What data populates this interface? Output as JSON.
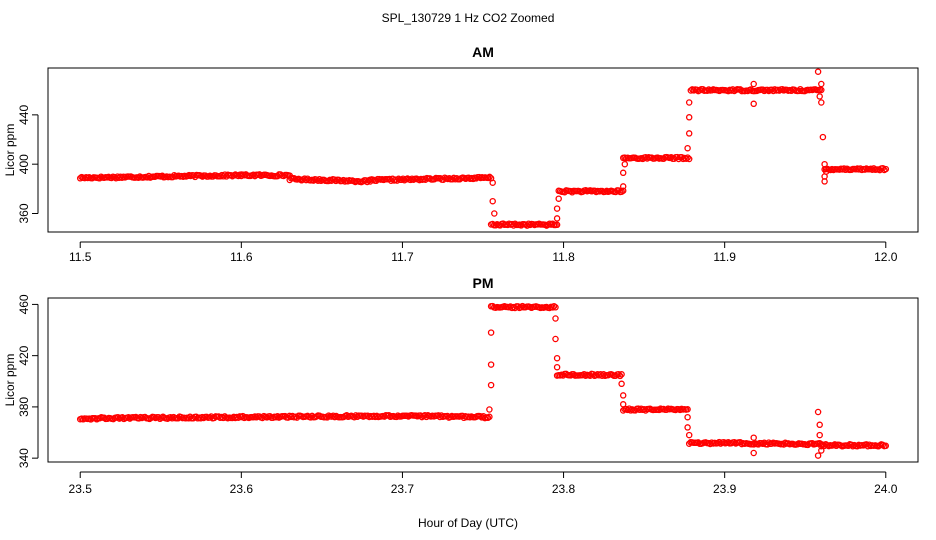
{
  "figure": {
    "title": "SPL_130729  1 Hz CO2 Zoomed",
    "xlabel": "Hour of Day (UTC)"
  },
  "chart_data": [
    {
      "type": "scatter",
      "title": "AM",
      "xlabel": "",
      "ylabel": "Licor ppm",
      "xlim": [
        11.48,
        12.02
      ],
      "ylim": [
        345,
        478
      ],
      "xticks": [
        11.5,
        11.6,
        11.7,
        11.8,
        11.9,
        12.0
      ],
      "xtick_labels": [
        "11.5",
        "11.6",
        "11.7",
        "11.8",
        "11.9",
        "12.0"
      ],
      "yticks": [
        360,
        400,
        440
      ],
      "ytick_labels": [
        "360",
        "400",
        "440"
      ],
      "grid": false,
      "marker_color": "#ff0000",
      "series": [
        {
          "segments": [
            {
              "x0": 11.5,
              "x1": 11.55,
              "y0": 389,
              "y1": 390
            },
            {
              "x0": 11.55,
              "x1": 11.6,
              "y0": 390,
              "y1": 391
            },
            {
              "x0": 11.6,
              "x1": 11.63,
              "y0": 391,
              "y1": 391
            },
            {
              "x0": 11.63,
              "x1": 11.68,
              "y0": 388,
              "y1": 386
            },
            {
              "x0": 11.68,
              "x1": 11.755,
              "y0": 387,
              "y1": 389
            },
            {
              "x0": 11.755,
              "x1": 11.796,
              "y0": 351,
              "y1": 351
            },
            {
              "x0": 11.797,
              "x1": 11.837,
              "y0": 378,
              "y1": 378
            },
            {
              "x0": 11.837,
              "x1": 11.878,
              "y0": 405,
              "y1": 405
            },
            {
              "x0": 11.879,
              "x1": 11.96,
              "y0": 460,
              "y1": 460
            },
            {
              "x0": 11.962,
              "x1": 12.0,
              "y0": 396,
              "y1": 396
            }
          ],
          "points": [
            {
              "x": 11.756,
              "y": 385
            },
            {
              "x": 11.756,
              "y": 370
            },
            {
              "x": 11.757,
              "y": 360
            },
            {
              "x": 11.796,
              "y": 356
            },
            {
              "x": 11.796,
              "y": 364
            },
            {
              "x": 11.797,
              "y": 372
            },
            {
              "x": 11.837,
              "y": 382
            },
            {
              "x": 11.837,
              "y": 393
            },
            {
              "x": 11.838,
              "y": 400
            },
            {
              "x": 11.877,
              "y": 413
            },
            {
              "x": 11.878,
              "y": 425
            },
            {
              "x": 11.878,
              "y": 438
            },
            {
              "x": 11.878,
              "y": 450
            },
            {
              "x": 11.918,
              "y": 449
            },
            {
              "x": 11.918,
              "y": 465
            },
            {
              "x": 11.958,
              "y": 475
            },
            {
              "x": 11.959,
              "y": 455
            },
            {
              "x": 11.96,
              "y": 465
            },
            {
              "x": 11.96,
              "y": 450
            },
            {
              "x": 11.961,
              "y": 422
            },
            {
              "x": 11.962,
              "y": 400
            },
            {
              "x": 11.962,
              "y": 386
            },
            {
              "x": 11.962,
              "y": 390
            },
            {
              "x": 11.963,
              "y": 394
            }
          ]
        }
      ]
    },
    {
      "type": "scatter",
      "title": "PM",
      "xlabel": "",
      "ylabel": "Licor ppm",
      "xlim": [
        23.48,
        24.02
      ],
      "ylim": [
        337,
        465
      ],
      "xticks": [
        23.5,
        23.6,
        23.7,
        23.8,
        23.9,
        24.0
      ],
      "xtick_labels": [
        "23.5",
        "23.6",
        "23.7",
        "23.8",
        "23.9",
        "24.0"
      ],
      "yticks": [
        340,
        380,
        420,
        460
      ],
      "ytick_labels": [
        "340",
        "380",
        "420",
        "460"
      ],
      "grid": false,
      "marker_color": "#ff0000",
      "series": [
        {
          "segments": [
            {
              "x0": 23.5,
              "x1": 23.6,
              "y0": 371,
              "y1": 372
            },
            {
              "x0": 23.6,
              "x1": 23.7,
              "y0": 372,
              "y1": 373
            },
            {
              "x0": 23.7,
              "x1": 23.754,
              "y0": 373,
              "y1": 372
            },
            {
              "x0": 23.755,
              "x1": 23.795,
              "y0": 458,
              "y1": 458
            },
            {
              "x0": 23.796,
              "x1": 23.836,
              "y0": 405,
              "y1": 405
            },
            {
              "x0": 23.837,
              "x1": 23.877,
              "y0": 378,
              "y1": 378
            },
            {
              "x0": 23.878,
              "x1": 23.96,
              "y0": 352,
              "y1": 351
            },
            {
              "x0": 23.96,
              "x1": 24.0,
              "y0": 350,
              "y1": 350
            }
          ],
          "points": [
            {
              "x": 23.754,
              "y": 378
            },
            {
              "x": 23.755,
              "y": 397
            },
            {
              "x": 23.755,
              "y": 413
            },
            {
              "x": 23.755,
              "y": 438
            },
            {
              "x": 23.795,
              "y": 449
            },
            {
              "x": 23.795,
              "y": 433
            },
            {
              "x": 23.796,
              "y": 418
            },
            {
              "x": 23.796,
              "y": 411
            },
            {
              "x": 23.836,
              "y": 398
            },
            {
              "x": 23.837,
              "y": 389
            },
            {
              "x": 23.837,
              "y": 382
            },
            {
              "x": 23.877,
              "y": 372
            },
            {
              "x": 23.877,
              "y": 364
            },
            {
              "x": 23.878,
              "y": 358
            },
            {
              "x": 23.918,
              "y": 356
            },
            {
              "x": 23.918,
              "y": 344
            },
            {
              "x": 23.958,
              "y": 376
            },
            {
              "x": 23.959,
              "y": 366
            },
            {
              "x": 23.959,
              "y": 358
            },
            {
              "x": 23.96,
              "y": 346
            },
            {
              "x": 23.958,
              "y": 342
            }
          ]
        }
      ]
    }
  ]
}
